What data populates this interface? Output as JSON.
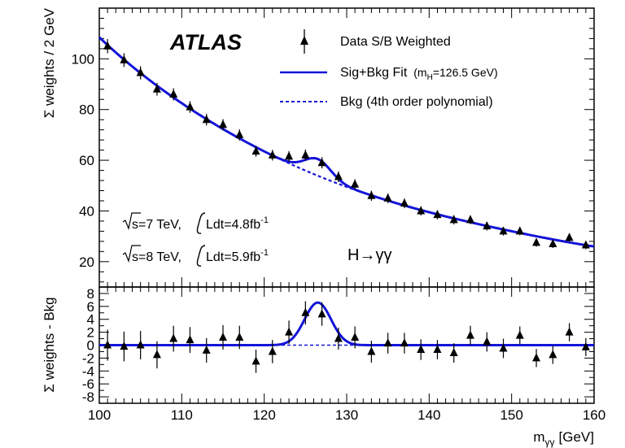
{
  "chart_data": [
    {
      "type": "scatter",
      "panel": "main",
      "experiment": "ATLAS",
      "ylabel": "Σ weights / 2 GeV",
      "xlim": [
        100,
        160
      ],
      "ylim": [
        10,
        120
      ],
      "yticks": [
        "20",
        "40",
        "60",
        "80",
        "100"
      ],
      "grid": false,
      "legend_position": "top-right",
      "legend": {
        "data": "Data S/B Weighted",
        "fit_main": "Sig+Bkg Fit",
        "fit_sub": "(m",
        "fit_sub2": "H",
        "fit_sub3": "=126.5 GeV)",
        "bkg": "Bkg (4th order polynomial)"
      },
      "annotations": {
        "line1_a": "s=7 TeV,",
        "line1_b": "Ldt=4.8fb",
        "line1_sup": "-1",
        "line2_a": "s=8 TeV,",
        "line2_b": "Ldt=5.9fb",
        "line2_sup": "-1",
        "process": "H→γγ"
      },
      "series": [
        {
          "name": "Data S/B Weighted",
          "x": [
            101,
            103,
            105,
            107,
            109,
            111,
            113,
            115,
            117,
            119,
            121,
            123,
            125,
            127,
            129,
            131,
            133,
            135,
            137,
            139,
            141,
            143,
            145,
            147,
            149,
            151,
            153,
            155,
            157,
            159
          ],
          "y": [
            105,
            99.5,
            94.5,
            88,
            86,
            81,
            76,
            74,
            70,
            63.5,
            62,
            61.5,
            62,
            59,
            53.5,
            50.5,
            46,
            45,
            43,
            40,
            38.5,
            36.5,
            36.5,
            34,
            32,
            32,
            27.5,
            27,
            29.5,
            26.5
          ],
          "yerr": [
            2.8,
            2.7,
            2.6,
            2.5,
            2.4,
            2.3,
            2.3,
            2.2,
            2.2,
            2.1,
            2.1,
            2.1,
            2.2,
            2.2,
            2.1,
            2.0,
            2.0,
            1.9,
            1.9,
            1.8,
            1.8,
            1.8,
            1.7,
            1.7,
            1.7,
            1.6,
            1.6,
            1.6,
            1.6,
            1.6
          ]
        },
        {
          "name": "Sig+Bkg Fit",
          "signal": {
            "mass": 126.5,
            "sigma": 1.6,
            "amplitude": 6.6
          }
        },
        {
          "name": "Bkg (4th order polynomial)",
          "x": [
            100,
            110,
            120,
            130,
            140,
            150,
            160
          ],
          "y": [
            108.5,
            82.5,
            63.5,
            49.5,
            39.5,
            32.0,
            26.0
          ]
        }
      ]
    },
    {
      "type": "scatter",
      "panel": "residual",
      "xlabel": "m",
      "xlabel_sub": "γγ",
      "xlabel_unit": "[GeV]",
      "ylabel": "Σ weights - Bkg",
      "xlim": [
        100,
        160
      ],
      "ylim": [
        -9,
        9
      ],
      "xticks": [
        "100",
        "110",
        "120",
        "130",
        "140",
        "150",
        "160"
      ],
      "yticks": [
        "-8",
        "-6",
        "-4",
        "-2",
        "0",
        "2",
        "4",
        "6",
        "8"
      ],
      "series": [
        {
          "name": "Data S/B Weighted",
          "x": [
            101,
            103,
            105,
            107,
            109,
            111,
            113,
            115,
            117,
            119,
            121,
            123,
            125,
            127,
            129,
            131,
            133,
            135,
            137,
            139,
            141,
            143,
            145,
            147,
            149,
            151,
            153,
            155,
            157,
            159
          ],
          "y": [
            0,
            -0.2,
            0,
            -1.5,
            1,
            0.8,
            -0.8,
            1.2,
            1.2,
            -2.5,
            -1,
            2,
            5,
            4.8,
            1,
            1.2,
            -1,
            0.3,
            0.3,
            -0.7,
            -0.7,
            -1.2,
            1.5,
            0.5,
            -0.5,
            1.5,
            -2,
            -1.5,
            2,
            -0.3
          ],
          "yerr": [
            2.4,
            2.3,
            2.2,
            2.1,
            2.0,
            2.0,
            1.9,
            1.9,
            1.8,
            1.8,
            1.8,
            1.8,
            1.8,
            1.8,
            1.7,
            1.7,
            1.7,
            1.6,
            1.6,
            1.6,
            1.5,
            1.5,
            1.5,
            1.5,
            1.5,
            1.4,
            1.4,
            1.4,
            1.4,
            1.4
          ]
        },
        {
          "name": "Sig+Bkg Fit",
          "signal": {
            "mass": 126.5,
            "sigma": 1.6,
            "amplitude": 6.6
          }
        },
        {
          "name": "Bkg (4th order polynomial)",
          "y": 0
        }
      ]
    }
  ]
}
